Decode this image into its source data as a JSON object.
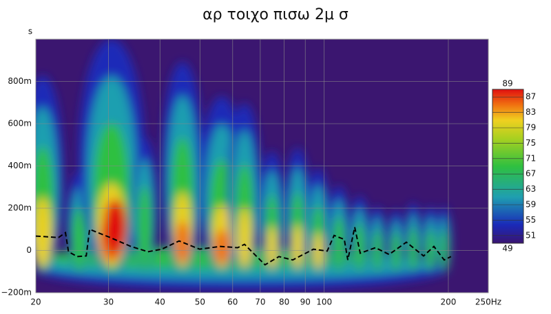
{
  "chart_data": {
    "type": "spectrogram",
    "title": "αρ τοιχο πισω 2μ σ",
    "y_label": "s",
    "x_scale": "log",
    "xlim": [
      20,
      250
    ],
    "xticks": [
      20,
      30,
      40,
      50,
      60,
      70,
      80,
      90,
      100,
      200,
      {
        "value": 250,
        "label": "250Hz"
      }
    ],
    "ylim": [
      -0.2,
      1.0
    ],
    "yticks": [
      {
        "value": -0.2,
        "label": "−200m"
      },
      0,
      {
        "value": 0.2,
        "label": "200m"
      },
      {
        "value": 0.4,
        "label": "400m"
      },
      {
        "value": 0.6,
        "label": "600m"
      },
      {
        "value": 0.8,
        "label": "800m"
      }
    ],
    "grid": true,
    "series": [
      {
        "color": "#000000",
        "x": [
          20,
          22.7,
          23.6,
          24,
          25.2,
          26.5,
          27,
          30.3,
          34,
          37.4,
          40.4,
          44.5,
          49.9,
          56,
          61.7,
          64.1,
          71.9,
          77.7,
          83.9,
          94.2,
          101.7,
          105.7,
          111.9,
          114.1,
          118.6,
          122.3,
          133.1,
          143.7,
          158.2,
          174.2,
          184.5,
          195.4,
          203
        ],
        "values": [
          0.068,
          0.061,
          0.084,
          -0.006,
          -0.029,
          -0.026,
          0.1,
          0.061,
          0.019,
          -0.006,
          0.006,
          0.045,
          0.006,
          0.019,
          0.013,
          0.029,
          -0.068,
          -0.029,
          -0.045,
          0.006,
          -0.003,
          0.071,
          0.052,
          -0.045,
          0.11,
          -0.013,
          0.013,
          -0.019,
          0.039,
          -0.026,
          0.019,
          -0.045,
          -0.029
        ]
      }
    ],
    "colorbar": {
      "clim": [
        49,
        89
      ],
      "ticks": [
        49,
        51,
        55,
        59,
        63,
        67,
        71,
        75,
        79,
        83,
        87,
        89
      ]
    }
  }
}
